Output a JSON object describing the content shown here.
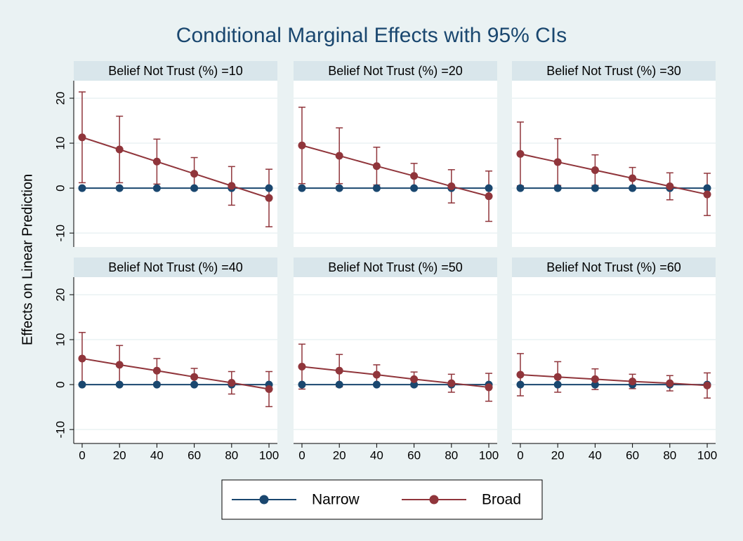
{
  "title": "Conditional Marginal Effects with 95% CIs",
  "y_label": "Effects on Linear Prediction",
  "chart_data": [
    {
      "type": "line",
      "title": "Belief Not Trust (%) =10",
      "x": [
        0,
        20,
        40,
        60,
        80,
        100
      ],
      "series": [
        {
          "name": "Narrow",
          "color": "#1a476f",
          "values": [
            0,
            0,
            0,
            0,
            0,
            0
          ]
        },
        {
          "name": "Broad",
          "color": "#90353b",
          "values": [
            11.3,
            8.6,
            5.9,
            3.2,
            0.5,
            -2.2
          ],
          "errors": [
            10.1,
            7.4,
            5.0,
            3.6,
            4.3,
            6.4
          ]
        }
      ],
      "xlim": [
        -4.5,
        104.5
      ],
      "ylim": [
        -13.1,
        23.9
      ],
      "yticks": [
        -10,
        0,
        10,
        20
      ],
      "grid": true
    },
    {
      "type": "line",
      "title": "Belief Not Trust (%) =20",
      "x": [
        0,
        20,
        40,
        60,
        80,
        100
      ],
      "series": [
        {
          "name": "Narrow",
          "color": "#1a476f",
          "values": [
            0,
            0,
            0,
            0,
            0,
            0
          ]
        },
        {
          "name": "Broad",
          "color": "#90353b",
          "values": [
            9.5,
            7.2,
            4.9,
            2.7,
            0.4,
            -1.8
          ],
          "errors": [
            8.5,
            6.2,
            4.2,
            2.8,
            3.7,
            5.6
          ]
        }
      ],
      "xlim": [
        -4.5,
        104.5
      ],
      "ylim": [
        -13.1,
        23.9
      ],
      "yticks": [
        -10,
        0,
        10,
        20
      ],
      "grid": true
    },
    {
      "type": "line",
      "title": "Belief Not Trust (%) =30",
      "x": [
        0,
        20,
        40,
        60,
        80,
        100
      ],
      "series": [
        {
          "name": "Narrow",
          "color": "#1a476f",
          "values": [
            0,
            0,
            0,
            0,
            0,
            0
          ]
        },
        {
          "name": "Broad",
          "color": "#90353b",
          "values": [
            7.6,
            5.8,
            4.0,
            2.2,
            0.4,
            -1.4
          ],
          "errors": [
            7.1,
            5.2,
            3.4,
            2.4,
            3.0,
            4.7
          ]
        }
      ],
      "xlim": [
        -4.5,
        104.5
      ],
      "ylim": [
        -13.1,
        23.9
      ],
      "yticks": [
        -10,
        0,
        10,
        20
      ],
      "grid": true
    },
    {
      "type": "line",
      "title": "Belief Not Trust (%) =40",
      "x": [
        0,
        20,
        40,
        60,
        80,
        100
      ],
      "series": [
        {
          "name": "Narrow",
          "color": "#1a476f",
          "values": [
            0,
            0,
            0,
            0,
            0,
            0
          ]
        },
        {
          "name": "Broad",
          "color": "#90353b",
          "values": [
            5.8,
            4.4,
            3.1,
            1.7,
            0.4,
            -1.0
          ],
          "errors": [
            5.8,
            4.3,
            2.7,
            1.9,
            2.5,
            3.9
          ]
        }
      ],
      "xlim": [
        -4.5,
        104.5
      ],
      "ylim": [
        -13.1,
        23.9
      ],
      "xticks": [
        0,
        20,
        40,
        60,
        80,
        100
      ],
      "yticks": [
        -10,
        0,
        10,
        20
      ],
      "grid": true
    },
    {
      "type": "line",
      "title": "Belief Not Trust (%) =50",
      "x": [
        0,
        20,
        40,
        60,
        80,
        100
      ],
      "series": [
        {
          "name": "Narrow",
          "color": "#1a476f",
          "values": [
            0,
            0,
            0,
            0,
            0,
            0
          ]
        },
        {
          "name": "Broad",
          "color": "#90353b",
          "values": [
            4.0,
            3.1,
            2.2,
            1.2,
            0.3,
            -0.6
          ],
          "errors": [
            5.0,
            3.6,
            2.2,
            1.6,
            2.0,
            3.1
          ]
        }
      ],
      "xlim": [
        -4.5,
        104.5
      ],
      "ylim": [
        -13.1,
        23.9
      ],
      "xticks": [
        0,
        20,
        40,
        60,
        80,
        100
      ],
      "yticks": [
        -10,
        0,
        10,
        20
      ],
      "grid": true
    },
    {
      "type": "line",
      "title": "Belief Not Trust (%) =60",
      "x": [
        0,
        20,
        40,
        60,
        80,
        100
      ],
      "series": [
        {
          "name": "Narrow",
          "color": "#1a476f",
          "values": [
            0,
            0,
            0,
            0,
            0,
            0
          ]
        },
        {
          "name": "Broad",
          "color": "#90353b",
          "values": [
            2.2,
            1.7,
            1.2,
            0.7,
            0.3,
            -0.2
          ],
          "errors": [
            4.7,
            3.4,
            2.3,
            1.6,
            1.7,
            2.8
          ]
        }
      ],
      "xlim": [
        -4.5,
        104.5
      ],
      "ylim": [
        -13.1,
        23.9
      ],
      "xticks": [
        0,
        20,
        40,
        60,
        80,
        100
      ],
      "yticks": [
        -10,
        0,
        10,
        20
      ],
      "grid": true
    }
  ]
}
